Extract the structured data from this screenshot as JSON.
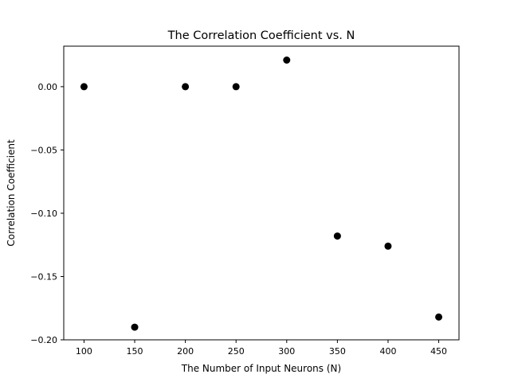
{
  "chart_data": {
    "type": "scatter",
    "title": "The Correlation Coefficient vs. N",
    "xlabel": "The Number of Input Neurons (N)",
    "ylabel": "Correlation Coefficient",
    "xlim": [
      80,
      470
    ],
    "ylim": [
      -0.2,
      0.032
    ],
    "xticks": [
      100,
      150,
      200,
      250,
      300,
      350,
      400,
      450
    ],
    "yticks": [
      -0.2,
      -0.15,
      -0.1,
      -0.05,
      0.0
    ],
    "ytick_labels": [
      "−0.20",
      "−0.15",
      "−0.10",
      "−0.05",
      "0.00"
    ],
    "grid": false,
    "series": [
      {
        "color": "#000000",
        "x": [
          100,
          150,
          200,
          250,
          300,
          350,
          400,
          450
        ],
        "y": [
          0.0,
          -0.19,
          0.0,
          0.0,
          0.021,
          -0.118,
          -0.126,
          -0.182
        ]
      }
    ]
  }
}
